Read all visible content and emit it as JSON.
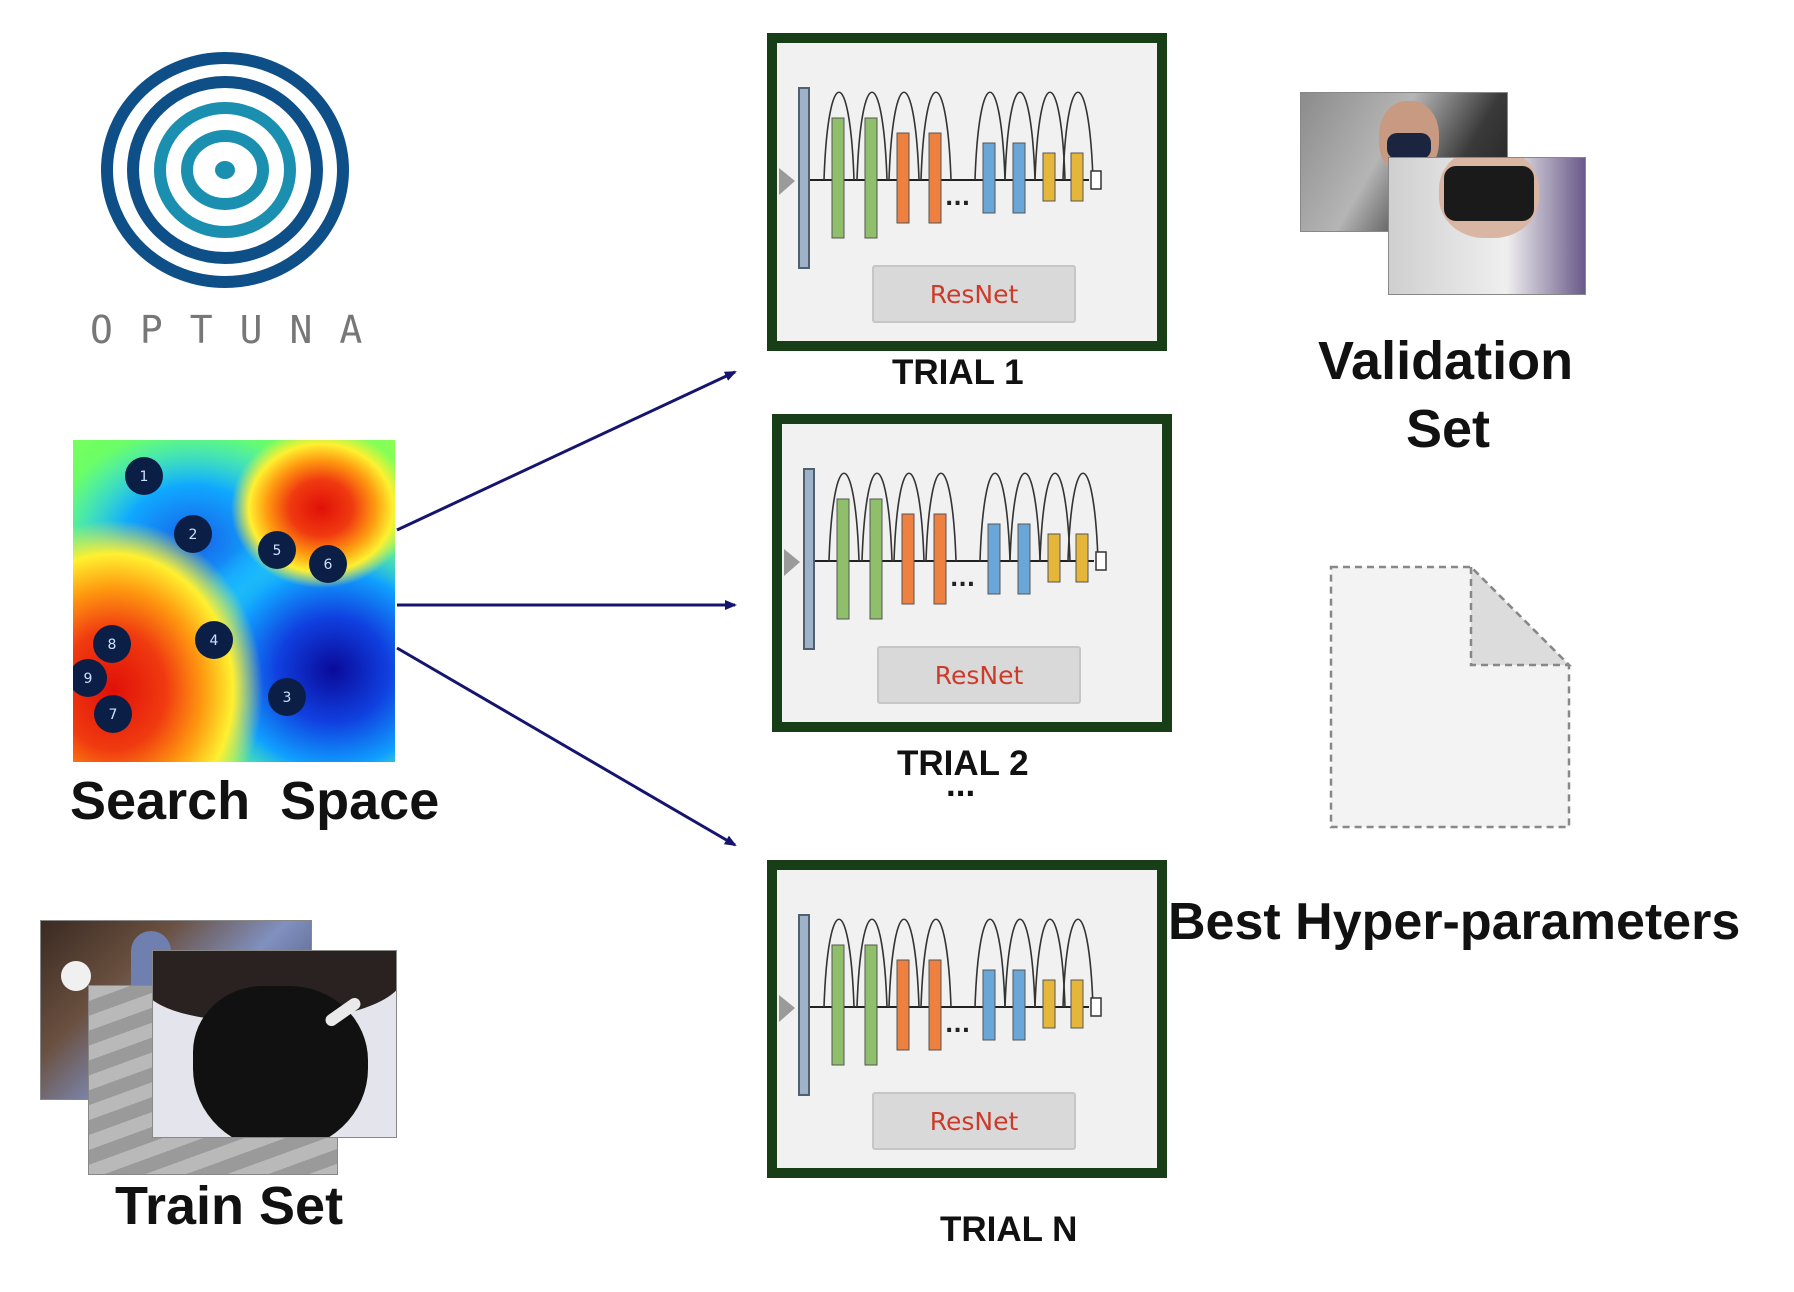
{
  "logo": {
    "wordmark": "OPTUNA",
    "icon": "optuna-concentric-rings-icon",
    "colors": [
      "#0d4f86",
      "#1a8fb0"
    ]
  },
  "search_space": {
    "label": "Search  Space",
    "points": [
      "1",
      "2",
      "3",
      "4",
      "5",
      "6",
      "7",
      "8",
      "9"
    ],
    "colors": {
      "low": "#0a0aa0",
      "high": "#e8200a",
      "point": "#0b1f46"
    }
  },
  "train_set": {
    "label": "Train Set"
  },
  "trials": [
    {
      "label": "TRIAL 1",
      "model": "ResNet"
    },
    {
      "label": "TRIAL 2",
      "model": "ResNet"
    },
    {
      "label": "TRIAL N",
      "model": "ResNet"
    }
  ],
  "trials_ellipsis": "...",
  "network_ellipsis": "...",
  "validation_set": {
    "line1": "Validation",
    "line2": "Set"
  },
  "best_params": {
    "label": "Best Hyper-parameters",
    "icon": "blank-document-icon"
  },
  "colors": {
    "arrow": "#151570",
    "trial_border": "#173e17",
    "layer_green": "#8fbf6a",
    "layer_orange": "#ee8040",
    "layer_blue": "#6aa6d8",
    "layer_yellow": "#e6b63a",
    "resnet_text": "#cc3b2a"
  }
}
